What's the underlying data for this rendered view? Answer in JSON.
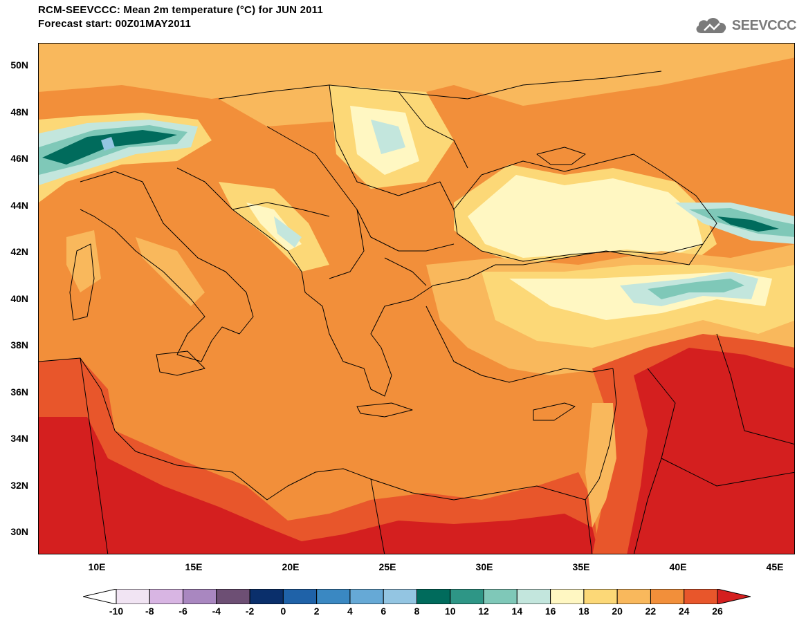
{
  "header": {
    "title_line1": "RCM-SEEVCCC: Mean 2m temperature (°C) for JUN 2011",
    "title_line2": "Forecast start: 00Z01MAY2011",
    "logo_text": "SEEVCCC"
  },
  "map": {
    "y_axis_labels": [
      "50N",
      "48N",
      "46N",
      "44N",
      "42N",
      "40N",
      "38N",
      "36N",
      "34N",
      "32N",
      "30N"
    ],
    "x_axis_labels": [
      "10E",
      "15E",
      "20E",
      "25E",
      "30E",
      "35E",
      "40E",
      "45E"
    ],
    "lon_range": [
      7,
      46
    ],
    "lat_range": [
      29,
      51
    ],
    "variable": "Mean 2m temperature",
    "unit": "°C"
  },
  "colorbar": {
    "labels": [
      "-10",
      "-8",
      "-6",
      "-4",
      "-2",
      "0",
      "2",
      "4",
      "6",
      "8",
      "10",
      "12",
      "14",
      "16",
      "18",
      "20",
      "22",
      "24",
      "26"
    ],
    "colors": [
      "#f1e4f3",
      "#d8b5e3",
      "#a987c0",
      "#6d4f74",
      "#0a2f6b",
      "#1f62a8",
      "#3a88c2",
      "#66a9d6",
      "#93c5e2",
      "#006b5c",
      "#2e9686",
      "#7fc8b8",
      "#c3e6dd",
      "#fff7c2",
      "#fcd877",
      "#f9b85c",
      "#f28f3a",
      "#e8562b"
    ],
    "under_color": "#ffffff",
    "over_color": "#d41f1f"
  }
}
